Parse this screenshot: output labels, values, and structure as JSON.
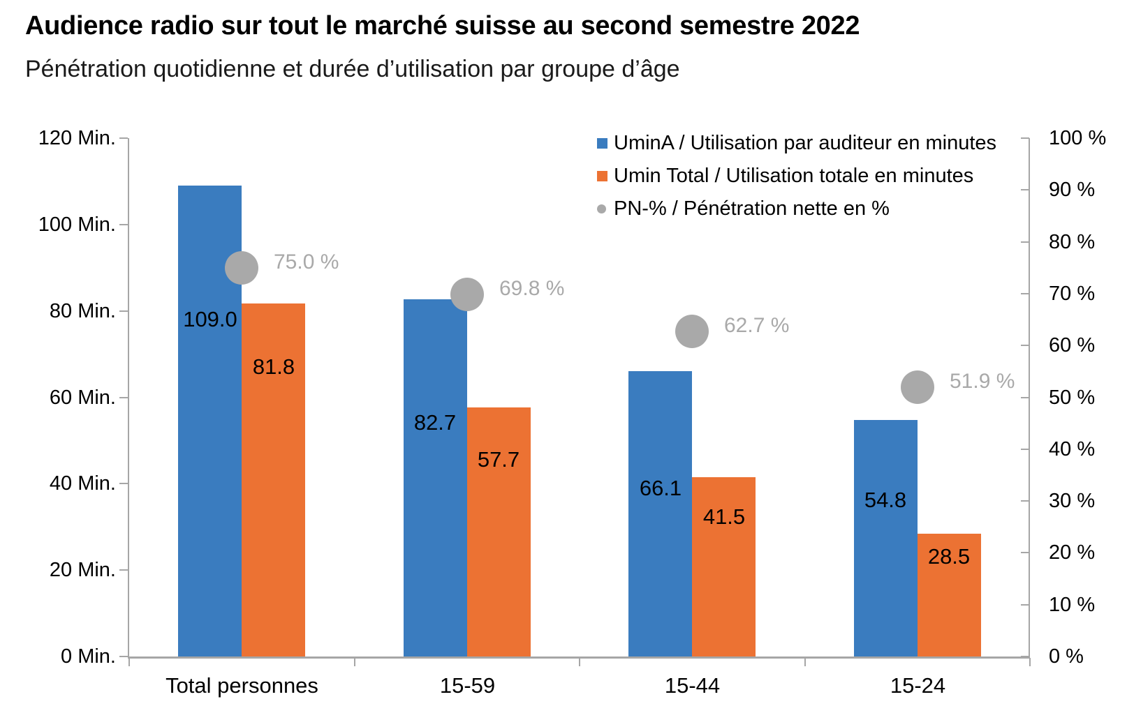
{
  "header": {
    "title": "Audience radio sur tout le marché suisse au second semestre 2022",
    "subtitle": "Pénétration quotidienne et durée d’utilisation par groupe d’âge"
  },
  "chart_data": {
    "type": "bar",
    "subtype": "grouped-bars-with-point-series-dual-axis",
    "title": "Audience radio sur tout le marché suisse au second semestre 2022",
    "subtitle": "Pénétration quotidienne et durée d’utilisation par groupe d’âge",
    "categories": [
      "Total personnes",
      "15-59",
      "15-44",
      "15-24"
    ],
    "series": [
      {
        "name": "UminA / Utilisation par auditeur en minutes",
        "type": "bar",
        "axis": "left",
        "color": "#3A7CBF",
        "values": [
          109.0,
          82.7,
          66.1,
          54.8
        ],
        "labels": [
          "109.0",
          "82.7",
          "66.1",
          "54.8"
        ]
      },
      {
        "name": "Umin Total / Utilisation totale en minutes",
        "type": "bar",
        "axis": "left",
        "color": "#EC7233",
        "values": [
          81.8,
          57.7,
          41.5,
          28.5
        ],
        "labels": [
          "81.8",
          "57.7",
          "41.5",
          "28.5"
        ]
      },
      {
        "name": "PN-% / Pénétration nette en %",
        "type": "point",
        "axis": "right",
        "color": "#A9A9A9",
        "values": [
          75.0,
          69.8,
          62.7,
          51.9
        ],
        "labels": [
          "75.0 %",
          "69.8 %",
          "62.7 %",
          "51.9 %"
        ]
      }
    ],
    "left_axis": {
      "min": 0,
      "max": 120,
      "step": 20,
      "unit": "Min.",
      "ticks": [
        {
          "v": 0,
          "label": "0 Min."
        },
        {
          "v": 20,
          "label": "20 Min."
        },
        {
          "v": 40,
          "label": "40 Min."
        },
        {
          "v": 60,
          "label": "60 Min."
        },
        {
          "v": 80,
          "label": "80 Min."
        },
        {
          "v": 100,
          "label": "100 Min."
        },
        {
          "v": 120,
          "label": "120 Min."
        }
      ]
    },
    "right_axis": {
      "min": 0,
      "max": 100,
      "step": 10,
      "unit": "%",
      "ticks": [
        {
          "v": 0,
          "label": "0 %"
        },
        {
          "v": 10,
          "label": "10 %"
        },
        {
          "v": 20,
          "label": "20 %"
        },
        {
          "v": 30,
          "label": "30 %"
        },
        {
          "v": 40,
          "label": "40 %"
        },
        {
          "v": 50,
          "label": "50 %"
        },
        {
          "v": 60,
          "label": "60 %"
        },
        {
          "v": 70,
          "label": "70 %"
        },
        {
          "v": 80,
          "label": "80 %"
        },
        {
          "v": 90,
          "label": "90 %"
        },
        {
          "v": 100,
          "label": "100 %"
        }
      ]
    },
    "legend_position": "top-right-inside",
    "grid": false,
    "colors": {
      "axis_line": "#A6A6A6",
      "text": "#000000",
      "pn_label": "#A9A9A9"
    }
  }
}
